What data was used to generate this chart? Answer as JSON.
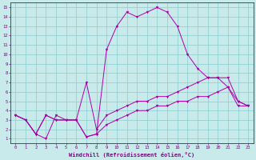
{
  "xlabel": "Windchill (Refroidissement éolien,°C)",
  "background_color": "#c8eaea",
  "grid_color": "#88cccc",
  "line_color": "#aa00aa",
  "spine_color": "#880088",
  "xlim": [
    -0.5,
    23.5
  ],
  "ylim": [
    0.5,
    15.5
  ],
  "xticks": [
    0,
    1,
    2,
    3,
    4,
    5,
    6,
    7,
    8,
    9,
    10,
    11,
    12,
    13,
    14,
    15,
    16,
    17,
    18,
    19,
    20,
    21,
    22,
    23
  ],
  "yticks": [
    1,
    2,
    3,
    4,
    5,
    6,
    7,
    8,
    9,
    10,
    11,
    12,
    13,
    14,
    15
  ],
  "line1_x": [
    0,
    1,
    2,
    3,
    4,
    5,
    6,
    7,
    8,
    9,
    10,
    11,
    12,
    13,
    14,
    15,
    16,
    17,
    18,
    19,
    20,
    21,
    22,
    23
  ],
  "line1_y": [
    3.5,
    3.0,
    1.5,
    1.0,
    3.5,
    3.0,
    3.0,
    1.2,
    1.5,
    10.5,
    13.0,
    14.5,
    14.0,
    14.5,
    15.0,
    14.5,
    13.0,
    10.0,
    8.5,
    7.5,
    7.5,
    6.5,
    5.0,
    4.5
  ],
  "line2_x": [
    0,
    1,
    2,
    3,
    4,
    5,
    6,
    7,
    8,
    9,
    10,
    11,
    12,
    13,
    14,
    15,
    16,
    17,
    18,
    19,
    20,
    21,
    22,
    23
  ],
  "line2_y": [
    3.5,
    3.0,
    1.5,
    3.5,
    3.0,
    3.0,
    3.0,
    7.0,
    2.0,
    3.5,
    4.0,
    4.5,
    5.0,
    5.0,
    5.5,
    5.5,
    6.0,
    6.5,
    7.0,
    7.5,
    7.5,
    7.5,
    5.0,
    4.5
  ],
  "line3_x": [
    0,
    1,
    2,
    3,
    4,
    5,
    6,
    7,
    8,
    9,
    10,
    11,
    12,
    13,
    14,
    15,
    16,
    17,
    18,
    19,
    20,
    21,
    22,
    23
  ],
  "line3_y": [
    3.5,
    3.0,
    1.5,
    3.5,
    3.0,
    3.0,
    3.0,
    1.2,
    1.5,
    2.5,
    3.0,
    3.5,
    4.0,
    4.0,
    4.5,
    4.5,
    5.0,
    5.0,
    5.5,
    5.5,
    6.0,
    6.5,
    4.5,
    4.5
  ],
  "tick_fontsize": 4.0,
  "xlabel_fontsize": 5.0,
  "linewidth": 0.7,
  "markersize": 2.0
}
